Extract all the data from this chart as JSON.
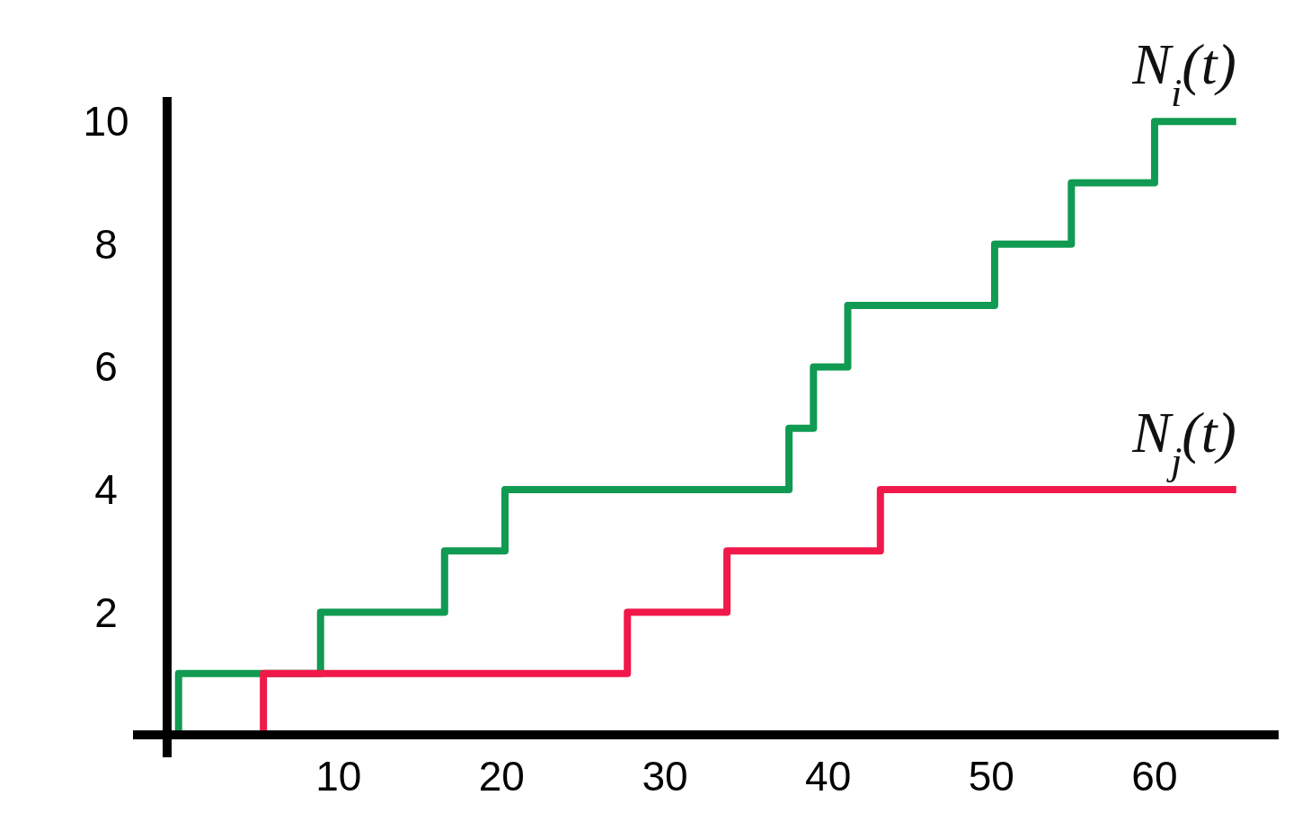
{
  "chart_data": {
    "type": "step",
    "xlim": [
      -0.5,
      67.6
    ],
    "ylim": [
      0,
      10.4
    ],
    "xticks": [
      10,
      20,
      30,
      40,
      50,
      60
    ],
    "yticks": [
      2,
      4,
      6,
      8,
      10
    ],
    "grid": false,
    "legend": false,
    "marker": "none",
    "line_style": "solid",
    "series": [
      {
        "name": "N$_{i}$(t)",
        "color": "#109a52",
        "x": [
          0,
          0.2,
          8.9,
          16.5,
          20.2,
          37.6,
          39.1,
          41.2,
          50.2,
          54.9,
          60,
          65
        ],
        "values": [
          0,
          1,
          2,
          3,
          4,
          5,
          6,
          7,
          8,
          9,
          10,
          10
        ]
      },
      {
        "name": "N$_{j}$(t)",
        "color": "#f0194a",
        "x": [
          0,
          5.4,
          27.7,
          33.8,
          43.2,
          65
        ],
        "values": [
          0,
          1,
          2,
          3,
          4,
          4
        ]
      }
    ]
  }
}
